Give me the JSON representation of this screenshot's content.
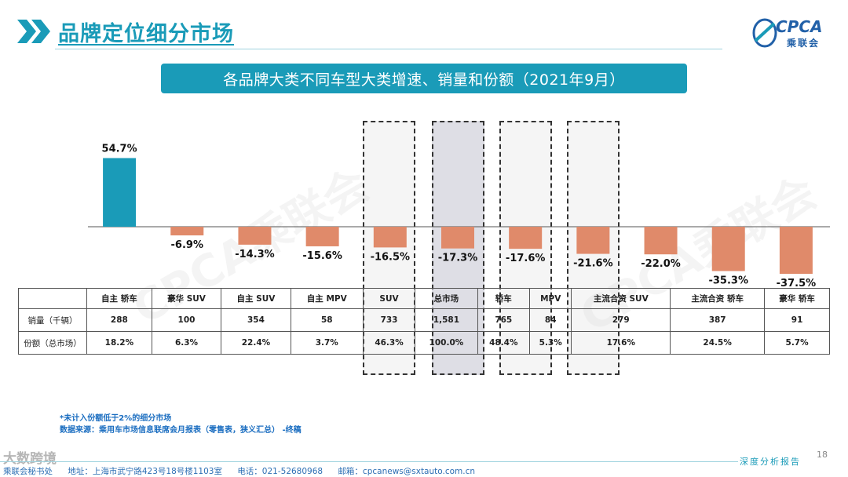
{
  "header": {
    "title": "品牌定位细分市场"
  },
  "logo": {
    "text": "CPCA",
    "sub": "乘联会"
  },
  "subtitle": "各品牌大类不同车型大类增速、销量和份额（2021年9月）",
  "watermark": "CPCA乘联会",
  "chart_data": {
    "type": "bar",
    "title": "各品牌大类不同车型大类增速、销量和份额（2021年9月）",
    "categories": [
      "自主 轿车",
      "豪华 SUV",
      "自主 SUV",
      "自主 MPV",
      "SUV",
      "总市场",
      "轿车",
      "MPV",
      "主流合资 SUV",
      "主流合资 轿车",
      "豪华 轿车"
    ],
    "series": [
      {
        "name": "增速",
        "values": [
          54.7,
          -6.9,
          -14.3,
          -15.6,
          -16.5,
          -17.3,
          -17.6,
          -21.6,
          -22.0,
          -35.3,
          -37.5
        ]
      }
    ],
    "value_labels": [
      "54.7%",
      "-6.9%",
      "-14.3%",
      "-15.6%",
      "-16.5%",
      "-17.3%",
      "-17.6%",
      "-21.6%",
      "-22.0%",
      "-35.3%",
      "-37.5%"
    ],
    "highlighted": [
      "SUV",
      "总市场",
      "轿车",
      "MPV"
    ],
    "colors": {
      "positive": "#1a9bb8",
      "negative": "#e08a6a"
    },
    "grid": false,
    "legend": "none"
  },
  "table": {
    "headers": [
      "",
      "自主 轿车",
      "豪华 SUV",
      "自主 SUV",
      "自主 MPV",
      "SUV",
      "总市场",
      "轿车",
      "MPV",
      "主流合资 SUV",
      "主流合资 轿车",
      "豪华 轿车"
    ],
    "rows": [
      {
        "label": "销量（千辆）",
        "values": [
          "288",
          "100",
          "354",
          "58",
          "733",
          "1,581",
          "765",
          "84",
          "279",
          "387",
          "91"
        ]
      },
      {
        "label": "份额（总市场）",
        "values": [
          "18.2%",
          "6.3%",
          "22.4%",
          "3.7%",
          "46.3%",
          "100.0%",
          "48.4%",
          "5.3%",
          "17.6%",
          "24.5%",
          "5.7%"
        ]
      }
    ]
  },
  "footnote": {
    "line1": "*未计入份额低于2%的细分市场",
    "line2": "数据来源：乘用车市场信息联席会月报表（零售表，狭义汇总） -终稿"
  },
  "footer": {
    "office": "乘联会秘书处",
    "address": "地址：上海市武宁路423号18号楼1103室",
    "phone": "电话：021-52680968",
    "email": "邮箱：cpcanews@sxtauto.com.cn",
    "brand_watermark": "大数跨境",
    "tagline": "深度分析报告",
    "page": "18"
  }
}
